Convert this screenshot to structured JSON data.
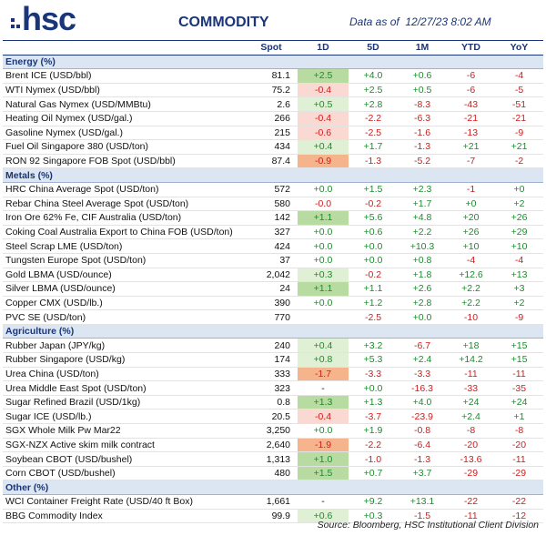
{
  "header": {
    "logo": "hsc",
    "title": "COMMODITY",
    "date": "Data as of  12/27/23 8:02 AM"
  },
  "table": {
    "columns": [
      "Spot",
      "1D",
      "5D",
      "1M",
      "YTD",
      "YoY"
    ],
    "sections": [
      {
        "name": "Energy (%)",
        "rows": [
          [
            "Brent ICE (USD/bbl)",
            "81.1",
            "+2.5",
            "+4.0",
            "+0.6",
            "-6",
            "-4"
          ],
          [
            "WTI Nymex (USD/bbl)",
            "75.2",
            "-0.4",
            "+2.5",
            "+0.5",
            "-6",
            "-5"
          ],
          [
            "Natural Gas Nymex (USD/MMBtu)",
            "2.6",
            "+0.5",
            "+2.8",
            "-8.3",
            "-43",
            "-51"
          ],
          [
            "Heating Oil Nymex (USD/gal.)",
            "266",
            "-0.4",
            "-2.2",
            "-6.3",
            "-21",
            "-21"
          ],
          [
            "Gasoline Nymex (USD/gal.)",
            "215",
            "-0.6",
            "-2.5",
            "-1.6",
            "-13",
            "-9"
          ],
          [
            "Fuel Oil Singapore 380 (USD/ton)",
            "434",
            "+0.4",
            "+1.7",
            "-1.3",
            "+21",
            "+21"
          ],
          [
            "RON 92 Singapore FOB Spot (USD/bbl)",
            "87.4",
            "-0.9",
            "-1.3",
            "-5.2",
            "-7",
            "-2"
          ]
        ]
      },
      {
        "name": "Metals (%)",
        "rows": [
          [
            "HRC China Average Spot (USD/ton)",
            "572",
            "+0.0",
            "+1.5",
            "+2.3",
            "-1",
            "+0"
          ],
          [
            "Rebar China Steel Average Spot (USD/ton)",
            "580",
            "-0.0",
            "-0.2",
            "+1.7",
            "+0",
            "+2"
          ],
          [
            "Iron Ore 62% Fe, CIF Australia (USD/ton)",
            "142",
            "+1.1",
            "+5.6",
            "+4.8",
            "+20",
            "+26"
          ],
          [
            "Coking Coal Australia Export to China FOB (USD/ton)",
            "327",
            "+0.0",
            "+0.6",
            "+2.2",
            "+26",
            "+29"
          ],
          [
            "Steel Scrap LME (USD/ton)",
            "424",
            "+0.0",
            "+0.0",
            "+10.3",
            "+10",
            "+10"
          ],
          [
            "Tungsten Europe Spot (USD/ton)",
            "37",
            "+0.0",
            "+0.0",
            "+0.8",
            "-4",
            "-4"
          ],
          [
            "Gold LBMA (USD/ounce)",
            "2,042",
            "+0.3",
            "-0.2",
            "+1.8",
            "+12.6",
            "+13"
          ],
          [
            "Silver LBMA (USD/ounce)",
            "24",
            "+1.1",
            "+1.1",
            "+2.6",
            "+2.2",
            "+3"
          ],
          [
            "Copper CMX (USD/lb.)",
            "390",
            "+0.0",
            "+1.2",
            "+2.8",
            "+2.2",
            "+2"
          ],
          [
            "PVC SE (USD/ton)",
            "770",
            null,
            "-2.5",
            "+0.0",
            "-10",
            "-9"
          ]
        ]
      },
      {
        "name": "Agriculture (%)",
        "rows": [
          [
            "Rubber Japan (JPY/kg)",
            "240",
            "+0.4",
            "+3.2",
            "-6.7",
            "+18",
            "+15"
          ],
          [
            "Rubber Singapore (USD/kg)",
            "174",
            "+0.8",
            "+5.3",
            "+2.4",
            "+14.2",
            "+15"
          ],
          [
            "Urea China (USD/ton)",
            "333",
            "-1.7",
            "-3.3",
            "-3.3",
            "-11",
            "-11"
          ],
          [
            "Urea Middle East Spot (USD/ton)",
            "323",
            "-",
            "+0.0",
            "-16.3",
            "-33",
            "-35"
          ],
          [
            "Sugar Refined Brazil (USD/1kg)",
            "0.8",
            "+1.3",
            "+1.3",
            "+4.0",
            "+24",
            "+24"
          ],
          [
            "Sugar ICE (USD/lb.)",
            "20.5",
            "-0.4",
            "-3.7",
            "-23.9",
            "+2.4",
            "+1"
          ],
          [
            "SGX Whole Milk Pw Mar22",
            "3,250",
            "+0.0",
            "+1.9",
            "-0.8",
            "-8",
            "-8"
          ],
          [
            "SGX-NZX Active skim milk contract",
            "2,640",
            "-1.9",
            "-2.2",
            "-6.4",
            "-20",
            "-20"
          ],
          [
            "Soybean CBOT (USD/bushel)",
            "1,313",
            "+1.0",
            "-1.0",
            "-1.3",
            "-13.6",
            "-11"
          ],
          [
            "Corn CBOT (USD/bushel)",
            "480",
            "+1.5",
            "+0.7",
            "+3.7",
            "-29",
            "-29"
          ]
        ]
      },
      {
        "name": "Other (%)",
        "rows": [
          [
            "WCI Container Freight Rate (USD/40 ft Box)",
            "1,661",
            "-",
            "+9.2",
            "+13.1",
            "-22",
            "-22"
          ],
          [
            "BBG Commodity Index",
            "99.9",
            "+0.6",
            "+0.3",
            "-1.5",
            "-11",
            "-12"
          ]
        ]
      }
    ]
  },
  "footer": {
    "source": "Source: Bloomberg, HSC Institutional Client Division"
  }
}
